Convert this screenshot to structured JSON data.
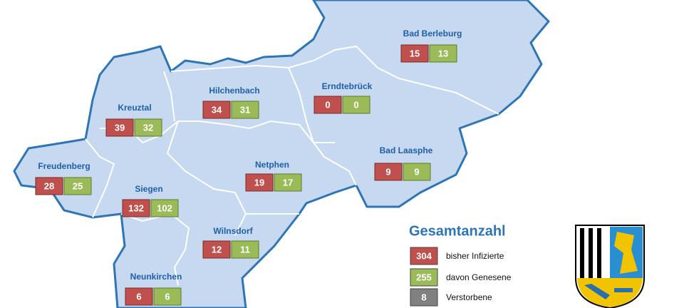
{
  "title": "Gesamtanzahl",
  "municipalities": [
    {
      "name": "Bad Berleburg",
      "infected": "15",
      "recovered": "13"
    },
    {
      "name": "Erndtebrück",
      "infected": "0",
      "recovered": "0"
    },
    {
      "name": "Hilchenbach",
      "infected": "34",
      "recovered": "31"
    },
    {
      "name": "Kreuztal",
      "infected": "39",
      "recovered": "32"
    },
    {
      "name": "Freudenberg",
      "infected": "28",
      "recovered": "25"
    },
    {
      "name": "Siegen",
      "infected": "132",
      "recovered": "102"
    },
    {
      "name": "Netphen",
      "infected": "19",
      "recovered": "17"
    },
    {
      "name": "Bad Laasphe",
      "infected": "9",
      "recovered": "9"
    },
    {
      "name": "Wilnsdorf",
      "infected": "12",
      "recovered": "11"
    },
    {
      "name": "Neunkirchen",
      "infected": "6",
      "recovered": "6"
    }
  ],
  "legend": [
    {
      "value": "304",
      "label": "bisher Infizierte"
    },
    {
      "value": "255",
      "label": "davon Genesene"
    },
    {
      "value": "8",
      "label": "Verstorbene"
    }
  ]
}
